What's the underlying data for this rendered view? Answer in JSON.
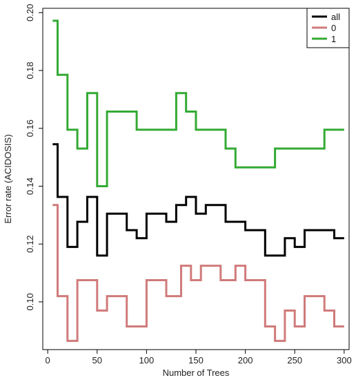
{
  "chart_data": {
    "type": "line",
    "title": "",
    "xlabel": "Number of Trees",
    "ylabel": "Error rate (ACIDOSIS)",
    "xlim": [
      -5,
      305
    ],
    "ylim": [
      0.0835,
      0.2015
    ],
    "x_ticks": [
      0,
      50,
      100,
      150,
      200,
      250,
      300
    ],
    "y_ticks": [
      0.1,
      0.12,
      0.14,
      0.16,
      0.18,
      0.2
    ],
    "x_tick_labels": [
      "0",
      "50",
      "100",
      "150",
      "200",
      "250",
      "300"
    ],
    "y_tick_labels": [
      "0.10",
      "0.12",
      "0.14",
      "0.16",
      "0.18",
      "0.20"
    ],
    "grid": false,
    "legend_position": "top-right",
    "series": [
      {
        "name": "all",
        "color": "#000000",
        "points": [
          [
            5,
            0.1545
          ],
          [
            10,
            0.1545
          ],
          [
            10,
            0.1363
          ],
          [
            20,
            0.1363
          ],
          [
            20,
            0.119
          ],
          [
            25,
            0.119
          ],
          [
            25,
            0.119
          ],
          [
            30,
            0.119
          ],
          [
            30,
            0.1277
          ],
          [
            35,
            0.1277
          ],
          [
            35,
            0.1277
          ],
          [
            40,
            0.1277
          ],
          [
            40,
            0.1363
          ],
          [
            45,
            0.1363
          ],
          [
            45,
            0.1363
          ],
          [
            50,
            0.1363
          ],
          [
            50,
            0.116
          ],
          [
            55,
            0.116
          ],
          [
            55,
            0.116
          ],
          [
            60,
            0.116
          ],
          [
            60,
            0.1305
          ],
          [
            70,
            0.1305
          ],
          [
            70,
            0.1305
          ],
          [
            80,
            0.1305
          ],
          [
            80,
            0.1248
          ],
          [
            85,
            0.1248
          ],
          [
            85,
            0.1248
          ],
          [
            90,
            0.1248
          ],
          [
            90,
            0.122
          ],
          [
            95,
            0.122
          ],
          [
            95,
            0.122
          ],
          [
            100,
            0.122
          ],
          [
            100,
            0.1305
          ],
          [
            110,
            0.1305
          ],
          [
            110,
            0.1305
          ],
          [
            120,
            0.1305
          ],
          [
            120,
            0.1277
          ],
          [
            130,
            0.1277
          ],
          [
            130,
            0.1335
          ],
          [
            135,
            0.1335
          ],
          [
            135,
            0.1335
          ],
          [
            140,
            0.1335
          ],
          [
            140,
            0.1363
          ],
          [
            145,
            0.1363
          ],
          [
            145,
            0.1363
          ],
          [
            150,
            0.1363
          ],
          [
            150,
            0.1305
          ],
          [
            155,
            0.1305
          ],
          [
            155,
            0.1305
          ],
          [
            160,
            0.1305
          ],
          [
            160,
            0.1335
          ],
          [
            170,
            0.1335
          ],
          [
            170,
            0.1335
          ],
          [
            180,
            0.1335
          ],
          [
            180,
            0.1277
          ],
          [
            190,
            0.1277
          ],
          [
            190,
            0.1277
          ],
          [
            200,
            0.1277
          ],
          [
            200,
            0.1248
          ],
          [
            210,
            0.1248
          ],
          [
            210,
            0.1248
          ],
          [
            220,
            0.1248
          ],
          [
            220,
            0.116
          ],
          [
            230,
            0.116
          ],
          [
            230,
            0.116
          ],
          [
            240,
            0.116
          ],
          [
            240,
            0.122
          ],
          [
            250,
            0.122
          ],
          [
            250,
            0.119
          ],
          [
            255,
            0.119
          ],
          [
            255,
            0.119
          ],
          [
            260,
            0.119
          ],
          [
            260,
            0.1248
          ],
          [
            270,
            0.1248
          ],
          [
            270,
            0.1248
          ],
          [
            280,
            0.1248
          ],
          [
            280,
            0.1248
          ],
          [
            290,
            0.1248
          ],
          [
            290,
            0.122
          ],
          [
            295,
            0.122
          ],
          [
            295,
            0.122
          ],
          [
            300,
            0.122
          ]
        ]
      },
      {
        "name": "0",
        "color": "#d07a7a",
        "points": [
          [
            5,
            0.1335
          ],
          [
            10,
            0.1335
          ],
          [
            10,
            0.102
          ],
          [
            20,
            0.102
          ],
          [
            20,
            0.0865
          ],
          [
            25,
            0.0865
          ],
          [
            25,
            0.0865
          ],
          [
            30,
            0.0865
          ],
          [
            30,
            0.1075
          ],
          [
            40,
            0.1075
          ],
          [
            40,
            0.1075
          ],
          [
            50,
            0.1075
          ],
          [
            50,
            0.097
          ],
          [
            55,
            0.097
          ],
          [
            55,
            0.097
          ],
          [
            60,
            0.097
          ],
          [
            60,
            0.102
          ],
          [
            70,
            0.102
          ],
          [
            70,
            0.102
          ],
          [
            80,
            0.102
          ],
          [
            80,
            0.0915
          ],
          [
            90,
            0.0915
          ],
          [
            90,
            0.0915
          ],
          [
            100,
            0.0915
          ],
          [
            100,
            0.1075
          ],
          [
            110,
            0.1075
          ],
          [
            110,
            0.1075
          ],
          [
            120,
            0.1075
          ],
          [
            120,
            0.102
          ],
          [
            130,
            0.102
          ],
          [
            130,
            0.102
          ],
          [
            135,
            0.102
          ],
          [
            135,
            0.1125
          ],
          [
            140,
            0.1125
          ],
          [
            140,
            0.1125
          ],
          [
            145,
            0.1125
          ],
          [
            145,
            0.1075
          ],
          [
            150,
            0.1075
          ],
          [
            150,
            0.1075
          ],
          [
            155,
            0.1075
          ],
          [
            155,
            0.1125
          ],
          [
            165,
            0.1125
          ],
          [
            165,
            0.1125
          ],
          [
            175,
            0.1125
          ],
          [
            175,
            0.1075
          ],
          [
            185,
            0.1075
          ],
          [
            185,
            0.1075
          ],
          [
            190,
            0.1075
          ],
          [
            190,
            0.1125
          ],
          [
            195,
            0.1125
          ],
          [
            195,
            0.1125
          ],
          [
            200,
            0.1125
          ],
          [
            200,
            0.1075
          ],
          [
            210,
            0.1075
          ],
          [
            210,
            0.1075
          ],
          [
            220,
            0.1075
          ],
          [
            220,
            0.0915
          ],
          [
            230,
            0.0915
          ],
          [
            230,
            0.0865
          ],
          [
            235,
            0.0865
          ],
          [
            235,
            0.0865
          ],
          [
            240,
            0.0865
          ],
          [
            240,
            0.097
          ],
          [
            245,
            0.097
          ],
          [
            245,
            0.097
          ],
          [
            250,
            0.097
          ],
          [
            250,
            0.0915
          ],
          [
            255,
            0.0915
          ],
          [
            255,
            0.0915
          ],
          [
            260,
            0.0915
          ],
          [
            260,
            0.102
          ],
          [
            270,
            0.102
          ],
          [
            270,
            0.102
          ],
          [
            280,
            0.102
          ],
          [
            280,
            0.097
          ],
          [
            285,
            0.097
          ],
          [
            285,
            0.097
          ],
          [
            290,
            0.097
          ],
          [
            290,
            0.0915
          ],
          [
            295,
            0.0915
          ],
          [
            295,
            0.0915
          ],
          [
            300,
            0.0915
          ]
        ]
      },
      {
        "name": "1",
        "color": "#33aa33",
        "points": [
          [
            5,
            0.1972
          ],
          [
            10,
            0.1972
          ],
          [
            10,
            0.1785
          ],
          [
            20,
            0.1785
          ],
          [
            20,
            0.1595
          ],
          [
            25,
            0.1595
          ],
          [
            25,
            0.1595
          ],
          [
            30,
            0.1595
          ],
          [
            30,
            0.153
          ],
          [
            35,
            0.153
          ],
          [
            35,
            0.153
          ],
          [
            40,
            0.153
          ],
          [
            40,
            0.1722
          ],
          [
            45,
            0.1722
          ],
          [
            45,
            0.1722
          ],
          [
            50,
            0.1722
          ],
          [
            50,
            0.14
          ],
          [
            55,
            0.14
          ],
          [
            55,
            0.14
          ],
          [
            60,
            0.14
          ],
          [
            60,
            0.1658
          ],
          [
            70,
            0.1658
          ],
          [
            70,
            0.1658
          ],
          [
            90,
            0.1658
          ],
          [
            90,
            0.1595
          ],
          [
            110,
            0.1595
          ],
          [
            110,
            0.1595
          ],
          [
            130,
            0.1595
          ],
          [
            130,
            0.1722
          ],
          [
            140,
            0.1722
          ],
          [
            140,
            0.1658
          ],
          [
            145,
            0.1658
          ],
          [
            145,
            0.1658
          ],
          [
            150,
            0.1658
          ],
          [
            150,
            0.1595
          ],
          [
            170,
            0.1595
          ],
          [
            170,
            0.1595
          ],
          [
            180,
            0.1595
          ],
          [
            180,
            0.153
          ],
          [
            190,
            0.153
          ],
          [
            190,
            0.1465
          ],
          [
            200,
            0.1465
          ],
          [
            200,
            0.1465
          ],
          [
            220,
            0.1465
          ],
          [
            220,
            0.1465
          ],
          [
            230,
            0.1465
          ],
          [
            230,
            0.153
          ],
          [
            250,
            0.153
          ],
          [
            250,
            0.153
          ],
          [
            270,
            0.153
          ],
          [
            270,
            0.153
          ],
          [
            280,
            0.153
          ],
          [
            280,
            0.1595
          ],
          [
            290,
            0.1595
          ],
          [
            290,
            0.1595
          ],
          [
            300,
            0.1595
          ]
        ]
      }
    ]
  }
}
